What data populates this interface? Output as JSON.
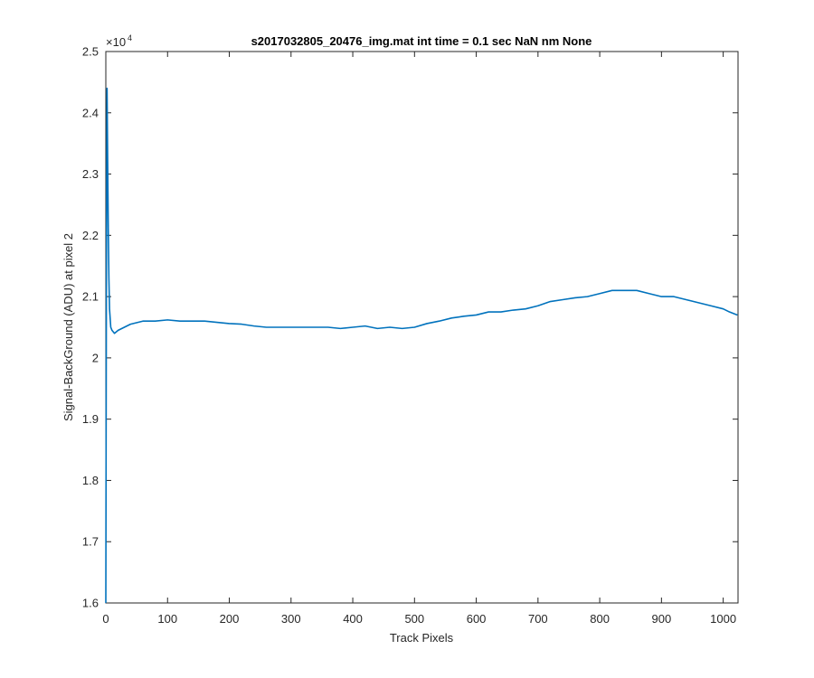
{
  "chart_data": {
    "type": "line",
    "title": "s2017032805_20476_img.mat int time = 0.1 sec  NaN nm None",
    "xlabel": "Track Pixels",
    "ylabel": "Signal-BackGround (ADU) at pixel 2",
    "y_exponent_label": "×10",
    "y_exponent_power": "4",
    "xlim": [
      0,
      1024
    ],
    "ylim": [
      16000,
      25000
    ],
    "x_ticks": [
      0,
      100,
      200,
      300,
      400,
      500,
      600,
      700,
      800,
      900,
      1000
    ],
    "x_tick_labels": [
      "0",
      "100",
      "200",
      "300",
      "400",
      "500",
      "600",
      "700",
      "800",
      "900",
      "1000"
    ],
    "y_ticks": [
      16000,
      17000,
      18000,
      19000,
      20000,
      21000,
      22000,
      23000,
      24000,
      25000
    ],
    "y_tick_labels": [
      "1.6",
      "1.7",
      "1.8",
      "1.9",
      "2",
      "2.1",
      "2.2",
      "2.3",
      "2.4",
      "2.5"
    ],
    "grid": false,
    "line_color": "#0072BD",
    "series": [
      {
        "x": [
          0,
          1,
          2,
          3,
          4,
          5,
          6,
          8,
          10,
          14,
          20,
          30,
          40,
          60,
          80,
          100,
          120,
          140,
          160,
          180,
          200,
          220,
          240,
          260,
          280,
          300,
          320,
          340,
          360,
          380,
          400,
          420,
          440,
          460,
          480,
          500,
          520,
          540,
          560,
          580,
          600,
          620,
          640,
          660,
          680,
          700,
          720,
          740,
          760,
          780,
          800,
          820,
          840,
          860,
          880,
          900,
          920,
          940,
          960,
          980,
          1000,
          1010,
          1023
        ],
        "values": [
          16000,
          21500,
          24400,
          23200,
          22100,
          21300,
          20800,
          20500,
          20450,
          20400,
          20450,
          20500,
          20550,
          20600,
          20600,
          20620,
          20600,
          20600,
          20600,
          20580,
          20560,
          20550,
          20520,
          20500,
          20500,
          20500,
          20500,
          20500,
          20500,
          20480,
          20500,
          20520,
          20480,
          20500,
          20480,
          20500,
          20560,
          20600,
          20650,
          20680,
          20700,
          20750,
          20750,
          20780,
          20800,
          20850,
          20920,
          20950,
          20980,
          21000,
          21050,
          21100,
          21100,
          21100,
          21050,
          21000,
          21000,
          20950,
          20900,
          20850,
          20800,
          20750,
          20700
        ]
      }
    ]
  }
}
